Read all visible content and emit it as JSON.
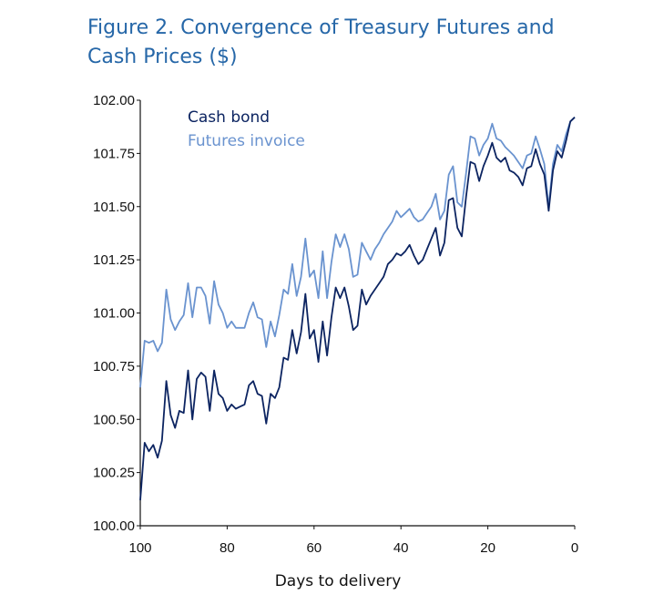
{
  "title_line1": "Figure 2. Convergence of Treasury Futures and",
  "title_line2": "Cash Prices ($)",
  "colors": {
    "title": "#2667a8",
    "cash_bond": "#0c2461",
    "futures_invoice": "#6a93cf"
  },
  "chart_data": {
    "type": "line",
    "title": "Figure 2. Convergence of Treasury Futures and Cash Prices ($)",
    "xlabel": "Days to delivery",
    "ylabel": "",
    "xlim": [
      100,
      0
    ],
    "ylim": [
      100.0,
      102.0
    ],
    "x_ticks": [
      "100",
      "80",
      "60",
      "40",
      "20",
      "0"
    ],
    "y_ticks": [
      "100.00",
      "100.25",
      "100.50",
      "100.75",
      "101.00",
      "101.25",
      "101.50",
      "101.75",
      "102.00"
    ],
    "x_reversed": true,
    "grid": false,
    "legend_position": "top-left",
    "x": [
      100,
      99,
      98,
      97,
      96,
      95,
      94,
      93,
      92,
      91,
      90,
      89,
      88,
      87,
      86,
      85,
      84,
      83,
      82,
      81,
      80,
      79,
      78,
      77,
      76,
      75,
      74,
      73,
      72,
      71,
      70,
      69,
      68,
      67,
      66,
      65,
      64,
      63,
      62,
      61,
      60,
      59,
      58,
      57,
      56,
      55,
      54,
      53,
      52,
      51,
      50,
      49,
      48,
      47,
      46,
      45,
      44,
      43,
      42,
      41,
      40,
      39,
      38,
      37,
      36,
      35,
      34,
      33,
      32,
      31,
      30,
      29,
      28,
      27,
      26,
      25,
      24,
      23,
      22,
      21,
      20,
      19,
      18,
      17,
      16,
      15,
      14,
      13,
      12,
      11,
      10,
      9,
      8,
      7,
      6,
      5,
      4,
      3,
      2,
      1,
      0
    ],
    "series": [
      {
        "name": "Cash bond",
        "values": [
          100.12,
          100.39,
          100.35,
          100.38,
          100.32,
          100.4,
          100.68,
          100.52,
          100.46,
          100.54,
          100.53,
          100.73,
          100.5,
          100.69,
          100.72,
          100.7,
          100.54,
          100.73,
          100.62,
          100.6,
          100.54,
          100.57,
          100.55,
          100.56,
          100.57,
          100.66,
          100.68,
          100.62,
          100.61,
          100.48,
          100.62,
          100.6,
          100.65,
          100.79,
          100.78,
          100.92,
          100.81,
          100.91,
          101.09,
          100.88,
          100.92,
          100.77,
          100.96,
          100.8,
          100.98,
          101.12,
          101.07,
          101.12,
          101.03,
          100.92,
          100.94,
          101.11,
          101.04,
          101.08,
          101.11,
          101.14,
          101.17,
          101.23,
          101.25,
          101.28,
          101.27,
          101.29,
          101.32,
          101.27,
          101.23,
          101.25,
          101.3,
          101.35,
          101.4,
          101.27,
          101.33,
          101.53,
          101.54,
          101.4,
          101.36,
          101.55,
          101.71,
          101.7,
          101.62,
          101.69,
          101.74,
          101.8,
          101.73,
          101.71,
          101.73,
          101.67,
          101.66,
          101.64,
          101.6,
          101.68,
          101.69,
          101.77,
          101.7,
          101.65,
          101.48,
          101.67,
          101.76,
          101.73,
          101.81,
          101.9,
          101.92
        ]
      },
      {
        "name": "Futures invoice",
        "values": [
          100.65,
          100.87,
          100.86,
          100.87,
          100.82,
          100.86,
          101.11,
          100.97,
          100.92,
          100.96,
          100.99,
          101.14,
          100.98,
          101.12,
          101.12,
          101.08,
          100.95,
          101.15,
          101.04,
          101.0,
          100.93,
          100.96,
          100.93,
          100.93,
          100.93,
          101.0,
          101.05,
          100.98,
          100.97,
          100.84,
          100.96,
          100.89,
          100.99,
          101.11,
          101.09,
          101.23,
          101.08,
          101.17,
          101.35,
          101.17,
          101.2,
          101.07,
          101.29,
          101.07,
          101.24,
          101.37,
          101.31,
          101.37,
          101.3,
          101.17,
          101.18,
          101.33,
          101.29,
          101.25,
          101.3,
          101.33,
          101.37,
          101.4,
          101.43,
          101.48,
          101.45,
          101.47,
          101.49,
          101.45,
          101.43,
          101.44,
          101.47,
          101.5,
          101.56,
          101.44,
          101.48,
          101.65,
          101.69,
          101.52,
          101.5,
          101.66,
          101.83,
          101.82,
          101.74,
          101.79,
          101.82,
          101.89,
          101.82,
          101.81,
          101.78,
          101.76,
          101.74,
          101.71,
          101.68,
          101.74,
          101.75,
          101.83,
          101.77,
          101.7,
          101.5,
          101.7,
          101.79,
          101.76,
          101.84,
          101.9,
          101.92
        ]
      }
    ]
  }
}
